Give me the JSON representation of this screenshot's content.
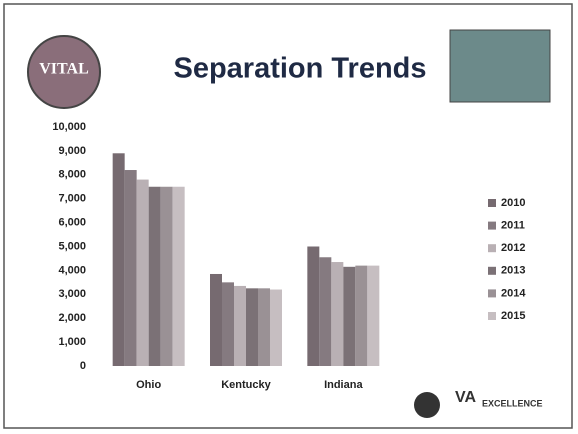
{
  "chart_data": {
    "type": "bar",
    "title": "Separation Trends",
    "categories": [
      "Ohio",
      "Kentucky",
      "Indiana"
    ],
    "series": [
      {
        "name": "2010",
        "color": "#766a70",
        "values": [
          8900,
          3850,
          5000
        ]
      },
      {
        "name": "2011",
        "color": "#857a80",
        "values": [
          8200,
          3500,
          4550
        ]
      },
      {
        "name": "2012",
        "color": "#b9b0b4",
        "values": [
          7800,
          3350,
          4350
        ]
      },
      {
        "name": "2013",
        "color": "#7b7176",
        "values": [
          7500,
          3250,
          4150
        ]
      },
      {
        "name": "2014",
        "color": "#9a9195",
        "values": [
          7500,
          3250,
          4200
        ]
      },
      {
        "name": "2015",
        "color": "#c6bec1",
        "values": [
          7500,
          3200,
          4200
        ]
      }
    ],
    "ylim": [
      0,
      10000
    ],
    "yticks": [
      0,
      {
        "value": 1000,
        "label": "1,000"
      },
      {
        "value": 2000,
        "label": "2,000"
      },
      {
        "value": 3000,
        "label": "3,000"
      },
      {
        "value": 4000,
        "label": "4,000"
      },
      {
        "value": 5000,
        "label": "5,000"
      },
      {
        "value": 6000,
        "label": "6,000"
      },
      {
        "value": 7000,
        "label": "7,000"
      },
      {
        "value": 8000,
        "label": "8,000"
      },
      {
        "value": 9000,
        "label": "9,000"
      },
      {
        "value": 10000,
        "label": "10,000"
      }
    ],
    "grid": false,
    "legend": "right"
  },
  "logos": {
    "vital": "VITAL",
    "va": "VA",
    "excellence": "EXCELLENCE"
  }
}
